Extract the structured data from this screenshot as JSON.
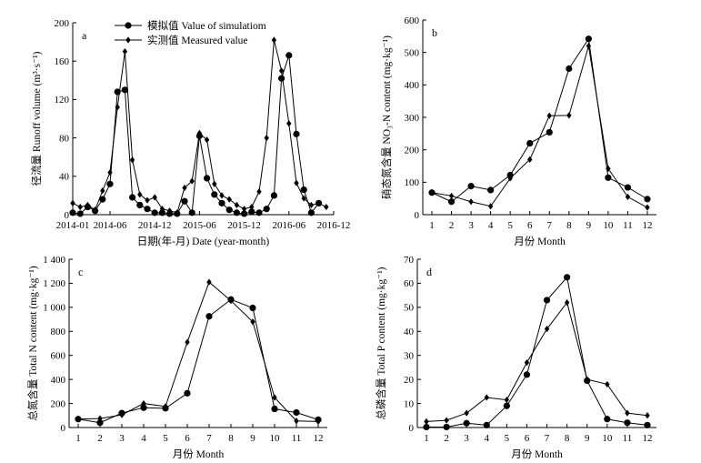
{
  "chart_data": [
    {
      "id": "a",
      "panel_label": "a",
      "type": "line",
      "ylabel": "径流量 Runoff volume (m³·s⁻¹)",
      "xlabel": "日期(年-月) Date (year-month)",
      "x_ticks": [
        "2014-01",
        "2014-06",
        "2014-12",
        "2015-06",
        "2015-12",
        "2016-06",
        "2016-12"
      ],
      "y_ticks": [
        "0",
        "40",
        "80",
        "120",
        "160",
        "200"
      ],
      "ylim": [
        0,
        200
      ],
      "legend": {
        "placement": "top-center",
        "entries": [
          "模拟值 Value of simulatiom",
          "实测值 Measured value"
        ]
      },
      "series": [
        {
          "name": "模拟值 Value of simulatiom",
          "marker": "circle",
          "x": [
            "2014-01",
            "2014-02",
            "2014-03",
            "2014-04",
            "2014-05",
            "2014-06",
            "2014-07",
            "2014-08",
            "2014-09",
            "2014-10",
            "2014-11",
            "2014-12",
            "2015-01",
            "2015-02",
            "2015-03",
            "2015-04",
            "2015-05",
            "2015-06",
            "2015-07",
            "2015-08",
            "2015-09",
            "2015-10",
            "2015-11",
            "2015-12",
            "2016-01",
            "2016-02",
            "2016-03",
            "2016-04",
            "2016-05",
            "2016-06",
            "2016-07",
            "2016-08",
            "2016-09",
            "2016-10"
          ],
          "values": [
            2,
            1,
            8,
            4,
            16,
            32,
            128,
            130,
            18,
            10,
            6,
            2,
            2,
            1,
            1,
            14,
            2,
            82,
            38,
            21,
            12,
            5,
            2,
            1,
            3,
            2,
            6,
            20,
            142,
            166,
            84,
            26,
            2,
            12
          ]
        },
        {
          "name": "实测值 Measured value",
          "marker": "diamond",
          "x": [
            "2014-01",
            "2014-02",
            "2014-03",
            "2014-04",
            "2014-05",
            "2014-06",
            "2014-07",
            "2014-08",
            "2014-09",
            "2014-10",
            "2014-11",
            "2014-12",
            "2015-01",
            "2015-02",
            "2015-03",
            "2015-04",
            "2015-05",
            "2015-06",
            "2015-07",
            "2015-08",
            "2015-09",
            "2015-10",
            "2015-11",
            "2015-12",
            "2016-01",
            "2016-02",
            "2016-03",
            "2016-04",
            "2016-05",
            "2016-06",
            "2016-07",
            "2016-08",
            "2016-09",
            "2016-10",
            "2016-11"
          ],
          "values": [
            12,
            8,
            10,
            5,
            25,
            44,
            112,
            170,
            57,
            21,
            15,
            18,
            6,
            4,
            2,
            28,
            35,
            85,
            78,
            32,
            20,
            16,
            10,
            6,
            8,
            24,
            80,
            182,
            150,
            95,
            33,
            17,
            10,
            12,
            8
          ]
        }
      ]
    },
    {
      "id": "b",
      "panel_label": "b",
      "type": "line",
      "ylabel": "硝态氮含量 NO₃-N content (mg·kg⁻¹)",
      "xlabel": "月份 Month",
      "categories": [
        1,
        2,
        3,
        4,
        5,
        6,
        7,
        8,
        9,
        10,
        11,
        12
      ],
      "y_ticks": [
        "0",
        "100",
        "200",
        "300",
        "400",
        "500",
        "600"
      ],
      "ylim": [
        0,
        600
      ],
      "series": [
        {
          "marker": "circle",
          "values": [
            68,
            40,
            88,
            76,
            122,
            220,
            254,
            450,
            542,
            114,
            84,
            48
          ]
        },
        {
          "marker": "diamond",
          "values": [
            68,
            58,
            40,
            26,
            112,
            170,
            305,
            306,
            520,
            142,
            55,
            22
          ]
        }
      ]
    },
    {
      "id": "c",
      "panel_label": "c",
      "type": "line",
      "ylabel": "总氮含量 Total N content (mg·kg⁻¹)",
      "xlabel": "月份 Month",
      "categories": [
        1,
        2,
        3,
        4,
        5,
        6,
        7,
        8,
        9,
        10,
        11,
        12
      ],
      "y_ticks": [
        "0",
        "200",
        "400",
        "600",
        "800",
        "1 000",
        "1 200",
        "1 400"
      ],
      "ylim": [
        0,
        1400
      ],
      "series": [
        {
          "marker": "circle",
          "values": [
            70,
            40,
            120,
            165,
            160,
            285,
            925,
            1065,
            995,
            155,
            125,
            65
          ]
        },
        {
          "marker": "diamond",
          "values": [
            70,
            75,
            105,
            200,
            175,
            710,
            1210,
            1055,
            880,
            250,
            55,
            50
          ]
        }
      ]
    },
    {
      "id": "d",
      "panel_label": "d",
      "type": "line",
      "ylabel": "总磷含量 Total P content (mg·kg⁻¹)",
      "xlabel": "月份 Month",
      "categories": [
        1,
        2,
        3,
        4,
        5,
        6,
        7,
        8,
        9,
        10,
        11,
        12
      ],
      "y_ticks": [
        "0",
        "10",
        "20",
        "30",
        "40",
        "50",
        "60",
        "70"
      ],
      "ylim": [
        0,
        70
      ],
      "series": [
        {
          "marker": "circle",
          "values": [
            0.2,
            0.2,
            1.8,
            1.0,
            9.0,
            22.0,
            53.0,
            62.5,
            19.5,
            3.5,
            2.0,
            1.0
          ]
        },
        {
          "marker": "diamond",
          "values": [
            2.5,
            3.0,
            6.0,
            12.5,
            11.5,
            27.0,
            41.0,
            52.0,
            20.0,
            18.0,
            6.0,
            5.0
          ]
        }
      ]
    }
  ]
}
